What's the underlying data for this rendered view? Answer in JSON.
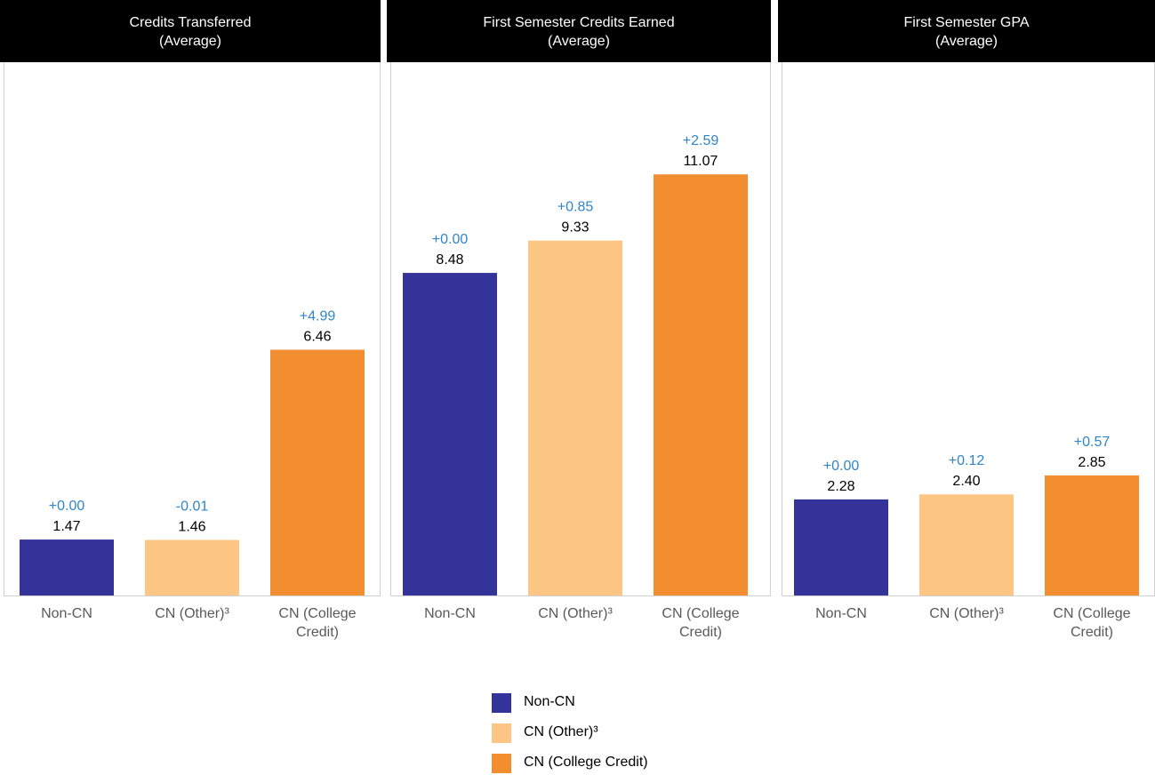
{
  "legend": {
    "position": "bottom-center",
    "items": [
      {
        "label": "Non-CN",
        "color": "#333399"
      },
      {
        "label": "CN (Other)³",
        "color": "#FDC684"
      },
      {
        "label": "CN (College Credit)",
        "color": "#F28E2F"
      }
    ]
  },
  "chart_data": [
    {
      "type": "bar",
      "title": "Credits Transferred",
      "subtitle": "(Average)",
      "categories": [
        "Non-CN",
        "CN (Other)³",
        "CN (College Credit)"
      ],
      "values": [
        1.47,
        1.46,
        6.46
      ],
      "value_labels": [
        "1.47",
        "1.46",
        "6.46"
      ],
      "differences": [
        "+0.00",
        "-0.01",
        "+4.99"
      ],
      "colors": [
        "#333399",
        "#FDC684",
        "#F28E2F"
      ],
      "difference_color": "#2E86C9",
      "ylim": [
        0,
        11.5
      ],
      "grid": false
    },
    {
      "type": "bar",
      "title": "First Semester Credits Earned",
      "subtitle": "(Average)",
      "categories": [
        "Non-CN",
        "CN (Other)³",
        "CN (College Credit)"
      ],
      "values": [
        8.48,
        9.33,
        11.07
      ],
      "value_labels": [
        "8.48",
        "9.33",
        "11.07"
      ],
      "differences": [
        "+0.00",
        "+0.85",
        "+2.59"
      ],
      "colors": [
        "#333399",
        "#FDC684",
        "#F28E2F"
      ],
      "difference_color": "#2E86C9",
      "ylim": [
        0,
        11.5
      ],
      "grid": false
    },
    {
      "type": "bar",
      "title": "First Semester GPA",
      "subtitle": "(Average)",
      "categories": [
        "Non-CN",
        "CN (Other)³",
        "CN (College Credit)"
      ],
      "values": [
        2.28,
        2.4,
        2.85
      ],
      "value_labels": [
        "2.28",
        "2.40",
        "2.85"
      ],
      "differences": [
        "+0.00",
        "+0.12",
        "+0.57"
      ],
      "colors": [
        "#333399",
        "#FDC684",
        "#F28E2F"
      ],
      "difference_color": "#2E86C9",
      "ylim": [
        0,
        7.6
      ],
      "grid": false
    }
  ]
}
